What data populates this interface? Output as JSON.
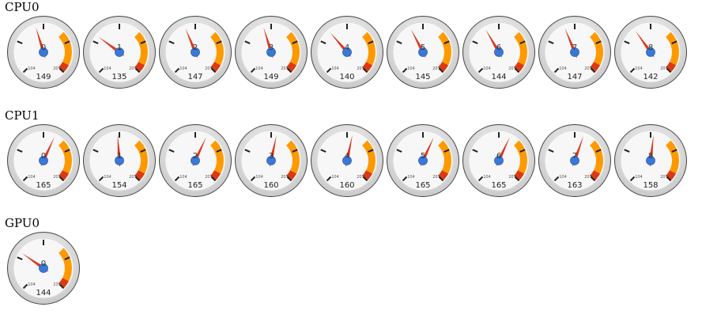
{
  "groups": [
    {
      "title": "CPU0",
      "gauges": [
        {
          "label": "0",
          "value": "149",
          "min": "104",
          "max": "207"
        },
        {
          "label": "1",
          "value": "135",
          "min": "104",
          "max": "207"
        },
        {
          "label": "2",
          "value": "147",
          "min": "104",
          "max": "207"
        },
        {
          "label": "3",
          "value": "149",
          "min": "104",
          "max": "207"
        },
        {
          "label": "4",
          "value": "140",
          "min": "104",
          "max": "207"
        },
        {
          "label": "5",
          "value": "145",
          "min": "104",
          "max": "207"
        },
        {
          "label": "6",
          "value": "144",
          "min": "104",
          "max": "207"
        },
        {
          "label": "7",
          "value": "147",
          "min": "104",
          "max": "207"
        },
        {
          "label": "8",
          "value": "142",
          "min": "104",
          "max": "207"
        }
      ]
    },
    {
      "title": "CPU1",
      "gauges": [
        {
          "label": "0",
          "value": "165",
          "min": "104",
          "max": "207"
        },
        {
          "label": "1",
          "value": "154",
          "min": "104",
          "max": "207"
        },
        {
          "label": "2",
          "value": "165",
          "min": "104",
          "max": "207"
        },
        {
          "label": "3",
          "value": "160",
          "min": "104",
          "max": "207"
        },
        {
          "label": "4",
          "value": "160",
          "min": "104",
          "max": "207"
        },
        {
          "label": "5",
          "value": "165",
          "min": "104",
          "max": "207"
        },
        {
          "label": "6",
          "value": "165",
          "min": "104",
          "max": "207"
        },
        {
          "label": "7",
          "value": "163",
          "min": "104",
          "max": "207"
        },
        {
          "label": "8",
          "value": "158",
          "min": "104",
          "max": "207"
        }
      ]
    },
    {
      "title": "GPU0",
      "gauges": [
        {
          "label": "0",
          "value": "144",
          "min": "104",
          "max": "239"
        }
      ]
    }
  ],
  "colors": {
    "needle": "#d93a21",
    "hub": "#3a78d8",
    "warning_band": "#ff9900",
    "critical_band": "#dc3912",
    "face": "#f7f7f7",
    "bezel": "#cccccc"
  }
}
